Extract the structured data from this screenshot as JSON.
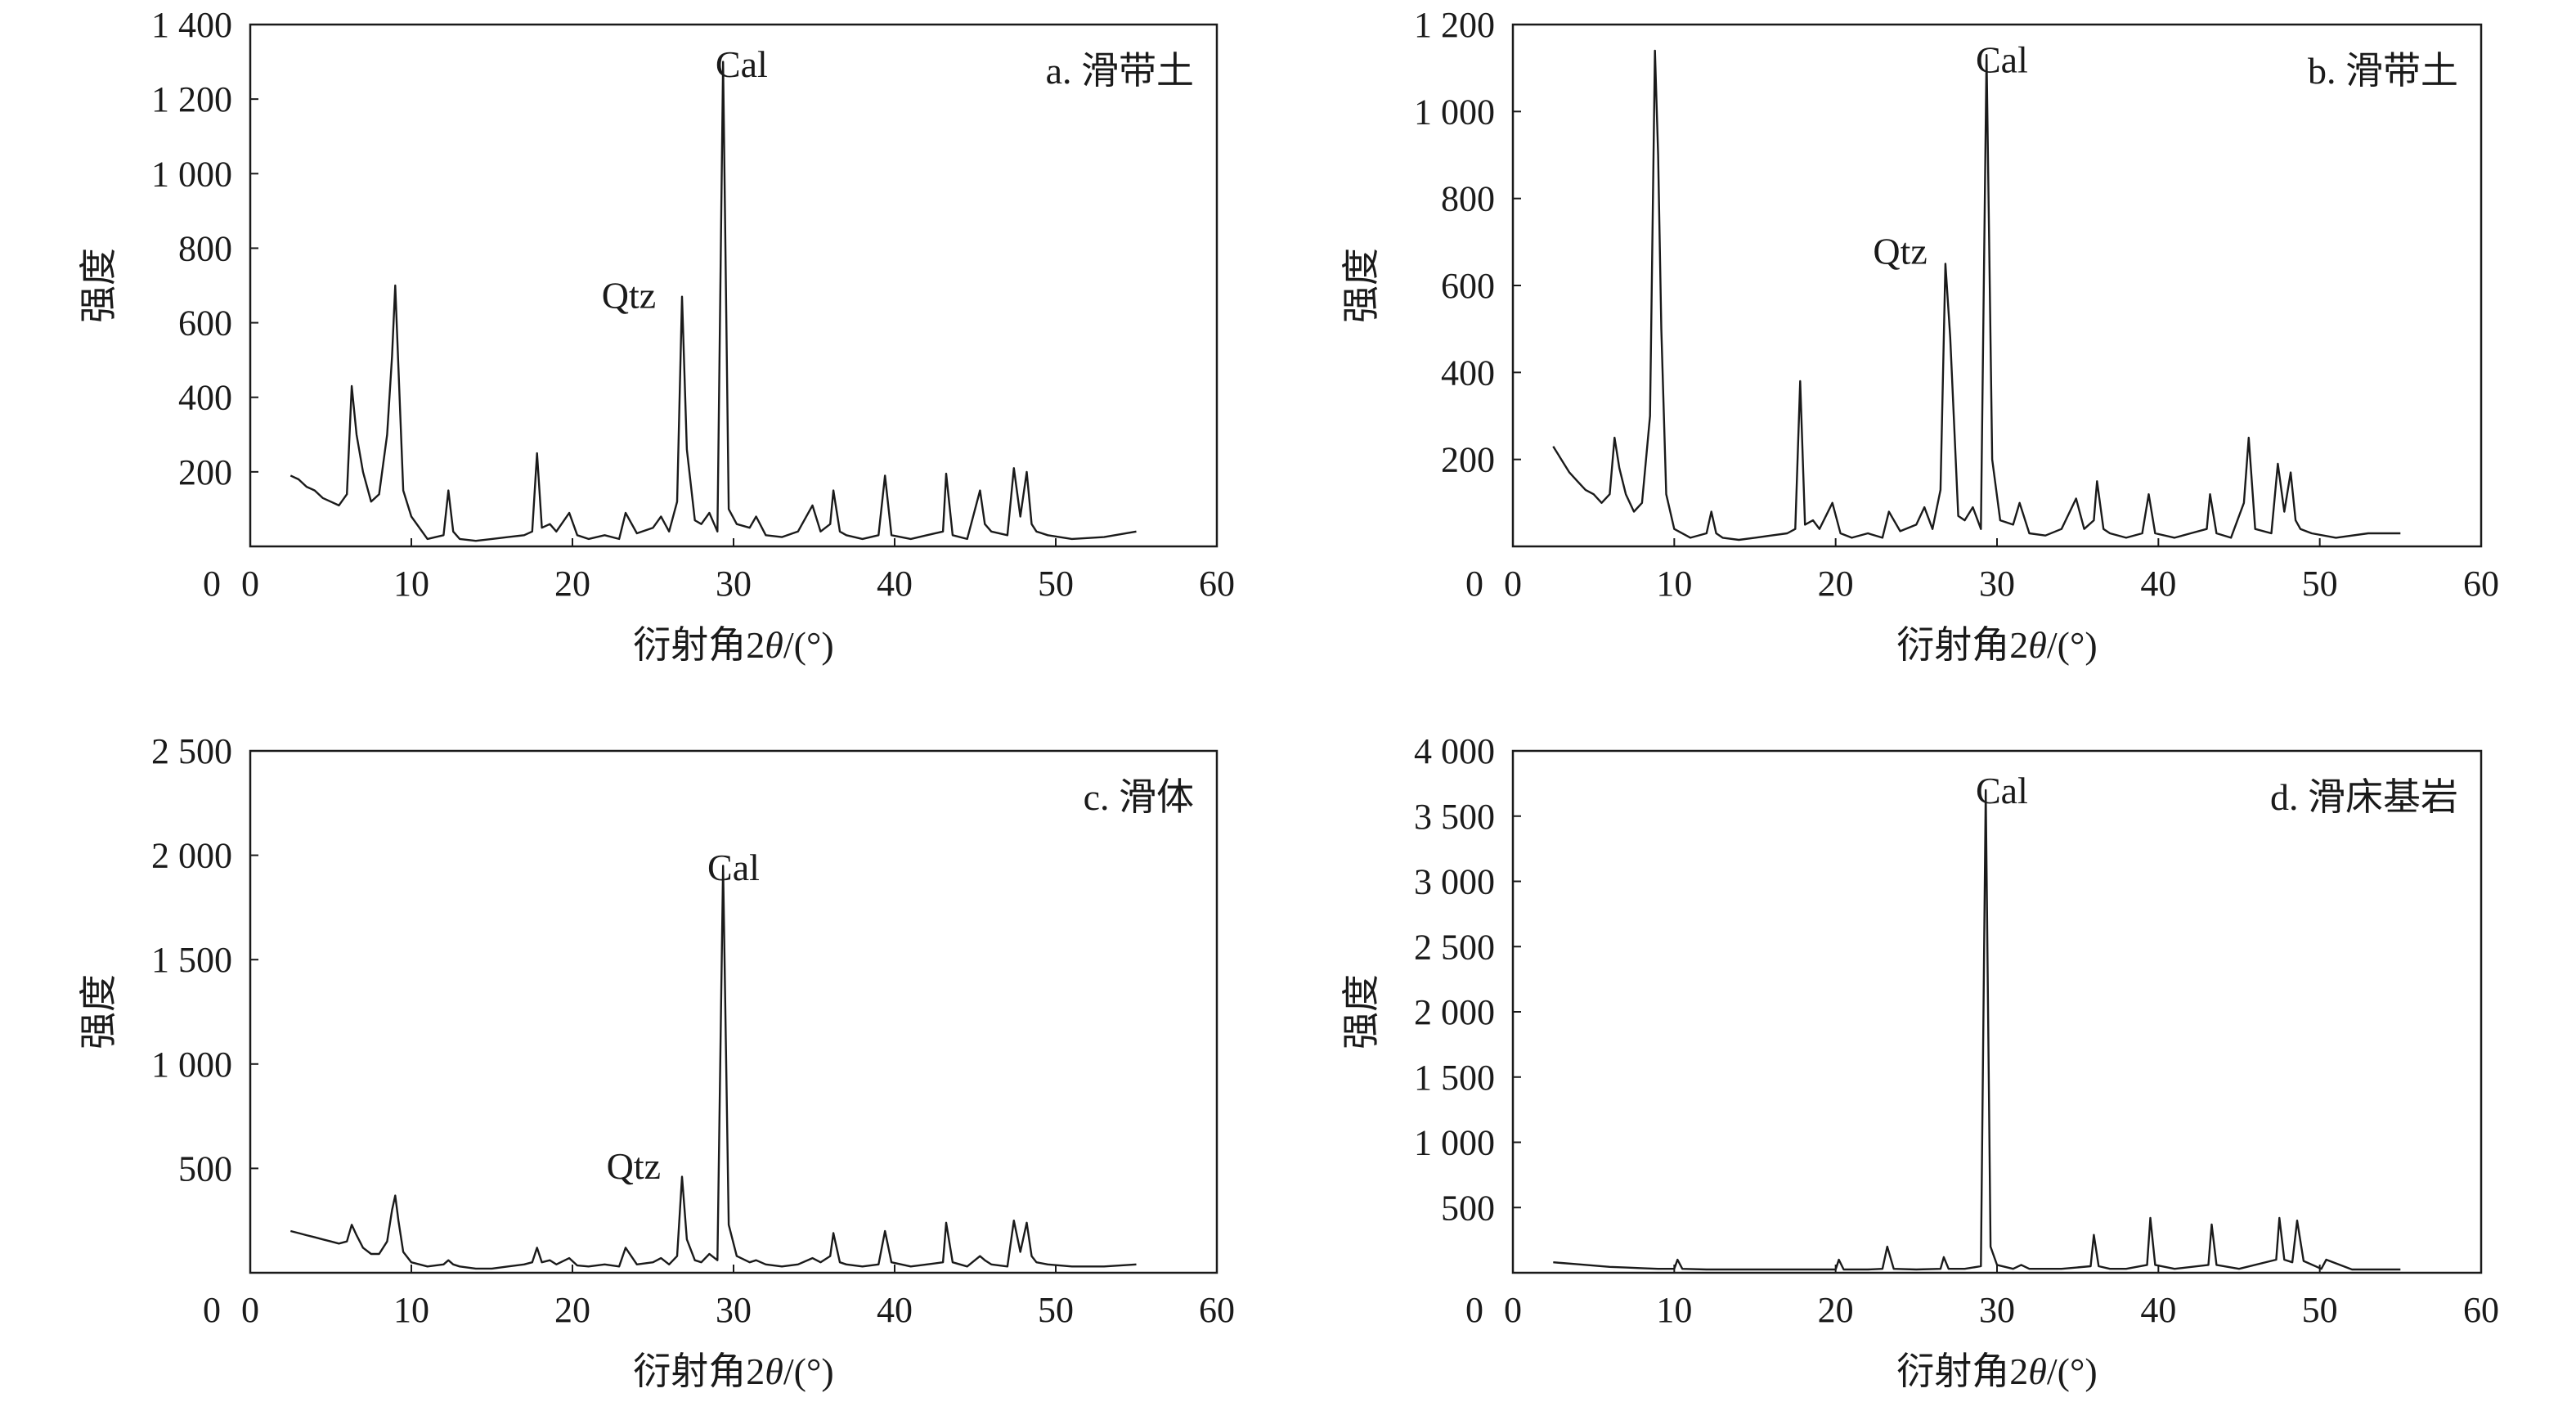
{
  "chart_data": [
    {
      "type": "line",
      "panel_label": "a. 滑带土",
      "xlabel_prefix": "衍射角2",
      "xlabel_theta": "θ",
      "xlabel_suffix": "/(°)",
      "ylabel": "强度",
      "xlim": [
        0,
        60
      ],
      "ylim": [
        0,
        1400
      ],
      "x_ticks": [
        "0",
        "10",
        "20",
        "30",
        "40",
        "50",
        "60"
      ],
      "y_ticks": [
        {
          "value": 200,
          "label": "200"
        },
        {
          "value": 400,
          "label": "400"
        },
        {
          "value": 600,
          "label": "600"
        },
        {
          "value": 800,
          "label": "800"
        },
        {
          "value": 1000,
          "label": "1 000"
        },
        {
          "value": 1200,
          "label": "1 200"
        },
        {
          "value": 1400,
          "label": "1 400"
        }
      ],
      "annotations": [
        {
          "text": "Cal",
          "x": 30.5,
          "y": 1260
        },
        {
          "text": "Qtz",
          "x": 23.5,
          "y": 640
        }
      ],
      "series": [
        {
          "x": [
            2.5,
            3,
            3.5,
            4,
            4.5,
            5,
            5.5,
            6,
            6.3,
            6.6,
            7,
            7.5,
            8,
            8.5,
            8.8,
            9.0,
            9.2,
            9.5,
            10,
            11,
            12,
            12.3,
            12.6,
            13,
            14,
            15,
            16,
            17,
            17.5,
            17.8,
            18.1,
            18.6,
            19,
            19.8,
            20.3,
            21,
            22,
            22.9,
            23.3,
            24,
            25,
            25.5,
            26,
            26.5,
            26.8,
            27.1,
            27.6,
            28,
            28.5,
            29.0,
            29.35,
            29.7,
            30.2,
            31,
            31.4,
            32,
            33,
            34,
            34.9,
            35.4,
            36,
            36.2,
            36.6,
            37,
            38,
            39,
            39.4,
            39.8,
            41,
            42,
            43,
            43.2,
            43.6,
            44.5,
            45.3,
            45.6,
            46,
            47,
            47.4,
            47.8,
            48.2,
            48.5,
            48.8,
            49.5,
            51,
            53,
            55
          ],
          "y": [
            190,
            180,
            160,
            150,
            130,
            120,
            110,
            140,
            430,
            300,
            200,
            120,
            140,
            300,
            510,
            700,
            480,
            150,
            80,
            20,
            30,
            150,
            40,
            20,
            15,
            20,
            25,
            30,
            40,
            250,
            50,
            60,
            40,
            90,
            30,
            20,
            30,
            20,
            90,
            35,
            50,
            80,
            40,
            120,
            670,
            260,
            70,
            60,
            90,
            40,
            1300,
            100,
            60,
            50,
            80,
            30,
            25,
            40,
            110,
            40,
            60,
            150,
            40,
            30,
            20,
            30,
            190,
            30,
            20,
            30,
            40,
            195,
            30,
            20,
            150,
            60,
            40,
            30,
            210,
            80,
            200,
            60,
            40,
            30,
            20,
            25,
            40
          ]
        }
      ]
    },
    {
      "type": "line",
      "panel_label": "b. 滑带土",
      "xlabel_prefix": "衍射角2",
      "xlabel_theta": "θ",
      "xlabel_suffix": "/(°)",
      "ylabel": "强度",
      "xlim": [
        0,
        60
      ],
      "ylim": [
        0,
        1200
      ],
      "x_ticks": [
        "0",
        "10",
        "20",
        "30",
        "40",
        "50",
        "60"
      ],
      "y_ticks": [
        {
          "value": 200,
          "label": "200"
        },
        {
          "value": 400,
          "label": "400"
        },
        {
          "value": 600,
          "label": "600"
        },
        {
          "value": 800,
          "label": "800"
        },
        {
          "value": 1000,
          "label": "1 000"
        },
        {
          "value": 1200,
          "label": "1 200"
        }
      ],
      "annotations": [
        {
          "text": "Cal",
          "x": 30.3,
          "y": 1090
        },
        {
          "text": "Qtz",
          "x": 24.0,
          "y": 650
        }
      ],
      "series": [
        {
          "x": [
            2.5,
            3,
            3.5,
            4,
            4.5,
            5,
            5.5,
            6,
            6.3,
            6.6,
            7,
            7.5,
            8,
            8.5,
            8.8,
            9.0,
            9.2,
            9.5,
            10,
            11,
            12,
            12.3,
            12.6,
            13,
            14,
            15,
            16,
            17,
            17.5,
            17.8,
            18.1,
            18.6,
            19,
            19.8,
            20.3,
            21,
            22,
            22.9,
            23.3,
            24,
            25,
            25.5,
            26,
            26.5,
            26.8,
            27.1,
            27.6,
            28,
            28.5,
            29.0,
            29.35,
            29.7,
            30.2,
            31,
            31.4,
            32,
            33,
            34,
            34.9,
            35.4,
            36,
            36.2,
            36.6,
            37,
            38,
            39,
            39.4,
            39.8,
            41,
            42,
            43,
            43.2,
            43.6,
            44.5,
            45.3,
            45.6,
            46,
            47,
            47.4,
            47.8,
            48.2,
            48.5,
            48.8,
            49.5,
            51,
            53,
            55
          ],
          "y": [
            230,
            200,
            170,
            150,
            130,
            120,
            100,
            120,
            250,
            180,
            120,
            80,
            100,
            300,
            1140,
            900,
            500,
            120,
            40,
            20,
            30,
            80,
            30,
            20,
            15,
            20,
            25,
            30,
            40,
            380,
            50,
            60,
            40,
            100,
            30,
            20,
            30,
            20,
            80,
            35,
            50,
            90,
            40,
            130,
            650,
            480,
            70,
            60,
            90,
            40,
            1130,
            200,
            60,
            50,
            100,
            30,
            25,
            40,
            110,
            40,
            60,
            150,
            40,
            30,
            20,
            30,
            120,
            30,
            20,
            30,
            40,
            120,
            30,
            20,
            100,
            250,
            40,
            30,
            190,
            80,
            170,
            60,
            40,
            30,
            20,
            30,
            30
          ]
        }
      ]
    },
    {
      "type": "line",
      "panel_label": "c. 滑体",
      "xlabel_prefix": "衍射角2",
      "xlabel_theta": "θ",
      "xlabel_suffix": "/(°)",
      "ylabel": "强度",
      "xlim": [
        0,
        60
      ],
      "ylim": [
        0,
        2500
      ],
      "x_ticks": [
        "0",
        "10",
        "20",
        "30",
        "40",
        "50",
        "60"
      ],
      "y_ticks": [
        {
          "value": 500,
          "label": "500"
        },
        {
          "value": 1000,
          "label": "1 000"
        },
        {
          "value": 1500,
          "label": "1 500"
        },
        {
          "value": 2000,
          "label": "2 000"
        },
        {
          "value": 2500,
          "label": "2 500"
        }
      ],
      "annotations": [
        {
          "text": "Cal",
          "x": 30.0,
          "y": 1880
        },
        {
          "text": "Qtz",
          "x": 23.8,
          "y": 450
        }
      ],
      "series": [
        {
          "x": [
            2.5,
            3,
            3.5,
            4,
            4.5,
            5,
            5.5,
            6,
            6.3,
            6.6,
            7,
            7.5,
            8,
            8.5,
            8.8,
            9.0,
            9.2,
            9.5,
            10,
            11,
            12,
            12.3,
            12.6,
            13,
            14,
            15,
            16,
            17,
            17.5,
            17.8,
            18.1,
            18.6,
            19,
            19.8,
            20.3,
            21,
            22,
            22.9,
            23.3,
            24,
            25,
            25.5,
            26,
            26.5,
            26.8,
            27.1,
            27.6,
            28,
            28.5,
            29.0,
            29.35,
            29.7,
            30.2,
            31,
            31.4,
            32,
            33,
            34,
            34.9,
            35.4,
            36,
            36.2,
            36.6,
            37,
            38,
            39,
            39.4,
            39.8,
            41,
            42,
            43,
            43.2,
            43.6,
            44.5,
            45.3,
            45.6,
            46,
            47,
            47.4,
            47.8,
            48.2,
            48.5,
            48.8,
            49.5,
            51,
            53,
            55
          ],
          "y": [
            200,
            190,
            180,
            170,
            160,
            150,
            140,
            150,
            230,
            180,
            120,
            90,
            90,
            150,
            300,
            370,
            250,
            100,
            50,
            30,
            40,
            60,
            40,
            30,
            20,
            20,
            30,
            40,
            50,
            120,
            50,
            60,
            40,
            70,
            35,
            30,
            40,
            30,
            120,
            40,
            50,
            70,
            40,
            80,
            460,
            160,
            60,
            50,
            90,
            60,
            1950,
            230,
            80,
            50,
            60,
            40,
            30,
            40,
            70,
            50,
            80,
            190,
            50,
            40,
            30,
            40,
            200,
            50,
            30,
            40,
            50,
            240,
            50,
            30,
            80,
            60,
            40,
            30,
            250,
            100,
            240,
            80,
            50,
            40,
            30,
            30,
            40
          ]
        }
      ]
    },
    {
      "type": "line",
      "panel_label": "d. 滑床基岩",
      "xlabel_prefix": "衍射角2",
      "xlabel_theta": "θ",
      "xlabel_suffix": "/(°)",
      "ylabel": "强度",
      "xlim": [
        0,
        60
      ],
      "ylim": [
        0,
        4000
      ],
      "x_ticks": [
        "0",
        "10",
        "20",
        "30",
        "40",
        "50",
        "60"
      ],
      "y_ticks": [
        {
          "value": 500,
          "label": "500"
        },
        {
          "value": 1000,
          "label": "1 000"
        },
        {
          "value": 1500,
          "label": "1 500"
        },
        {
          "value": 2000,
          "label": "2 000"
        },
        {
          "value": 2500,
          "label": "2 500"
        },
        {
          "value": 3000,
          "label": "3 000"
        },
        {
          "value": 3500,
          "label": "3 500"
        },
        {
          "value": 4000,
          "label": "4 000"
        }
      ],
      "annotations": [
        {
          "text": "Cal",
          "x": 30.3,
          "y": 3600
        }
      ],
      "series": [
        {
          "x": [
            2.5,
            3,
            4,
            5,
            6,
            7,
            8,
            9,
            10,
            10.2,
            10.5,
            12,
            14,
            16,
            18,
            20,
            20.2,
            20.5,
            22,
            22.9,
            23.2,
            23.6,
            25,
            26.5,
            26.7,
            27.0,
            28,
            29.0,
            29.3,
            29.6,
            30,
            31,
            31.5,
            32,
            34,
            35.8,
            36.0,
            36.3,
            37,
            38,
            39.3,
            39.5,
            39.8,
            41,
            43.1,
            43.3,
            43.6,
            45,
            47.3,
            47.5,
            47.8,
            48.3,
            48.6,
            49.0,
            50.1,
            50.4,
            52,
            55
          ],
          "y": [
            80,
            75,
            65,
            55,
            45,
            40,
            35,
            30,
            30,
            100,
            30,
            25,
            25,
            25,
            25,
            25,
            100,
            25,
            25,
            30,
            200,
            30,
            25,
            30,
            120,
            30,
            30,
            50,
            3700,
            200,
            60,
            30,
            60,
            30,
            30,
            50,
            290,
            50,
            30,
            30,
            60,
            420,
            60,
            30,
            60,
            370,
            60,
            30,
            100,
            420,
            100,
            80,
            400,
            90,
            30,
            100,
            25,
            25
          ]
        }
      ]
    }
  ]
}
